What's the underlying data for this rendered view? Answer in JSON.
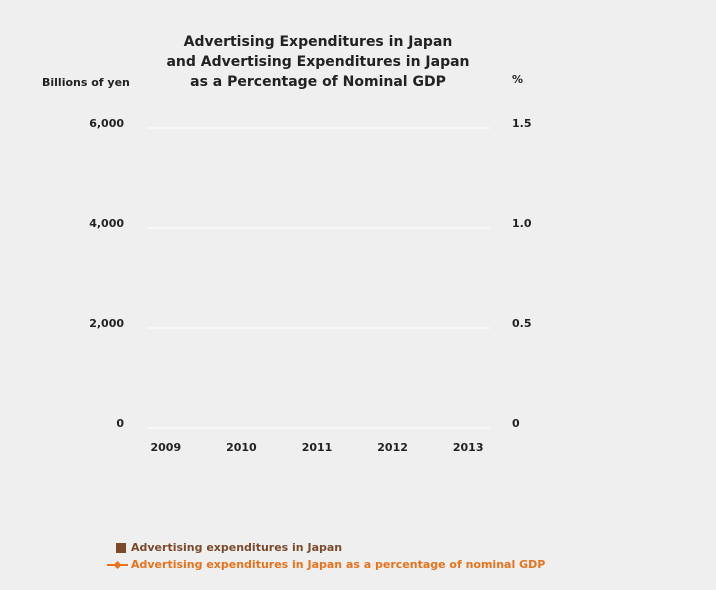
{
  "chart_data": {
    "type": "bar_line",
    "title": [
      "Advertising Expenditures in Japan",
      "and Advertising Expenditures in Japan",
      "as a Percentage of Nominal GDP"
    ],
    "y_label": "Billions of yen",
    "y2_label": "%",
    "categories": [
      "2009",
      "2010",
      "2011",
      "2012",
      "2013"
    ],
    "series": [
      {
        "name": "Advertising expenditures in Japan",
        "color": "#7b4a2b",
        "type": "bar",
        "values": [
          null,
          null,
          null,
          null,
          null
        ]
      },
      {
        "name": "Advertising expenditures in Japan as a percentage of nominal GDP",
        "color": "#e8721c",
        "type": "line",
        "axis": "y2",
        "values": [
          null,
          null,
          null,
          null,
          null
        ]
      }
    ],
    "ylim": [
      0,
      6000
    ],
    "yticks": [
      0,
      {
        "value": 2000,
        "label": "2,000"
      },
      {
        "value": 4000,
        "label": "4,000"
      },
      {
        "value": 6000,
        "label": "6,000"
      }
    ],
    "y2lim": [
      0,
      1.5
    ],
    "y2ticks": [
      0,
      0.5,
      {
        "value": 1,
        "label": "1.0"
      },
      1.5
    ],
    "grid": true
  }
}
